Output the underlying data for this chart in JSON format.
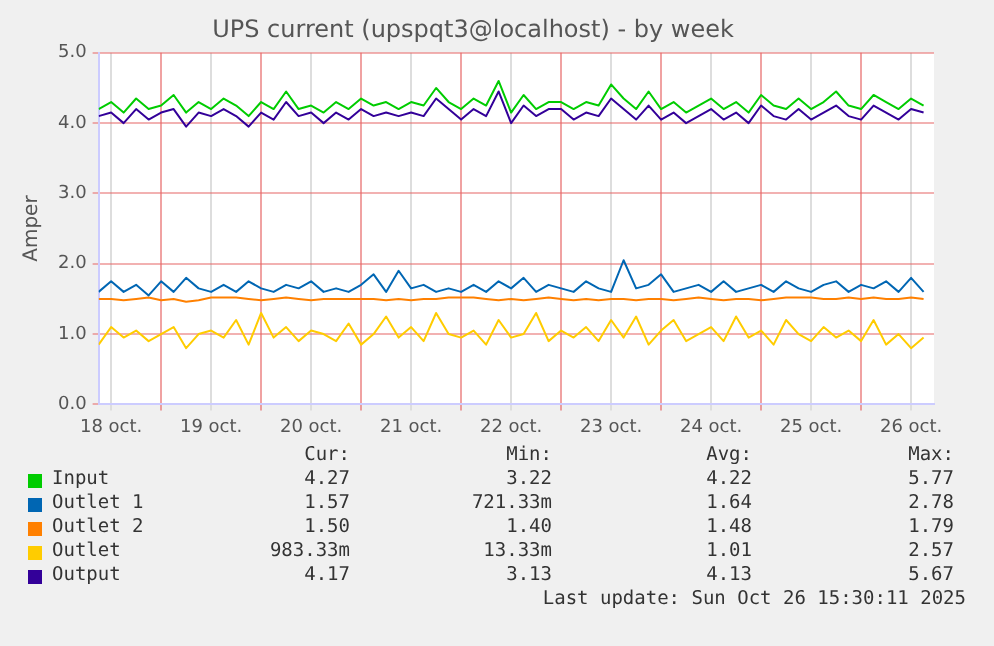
{
  "chart_data": {
    "type": "line",
    "title": "UPS current (upspqt3@localhost) - by week",
    "ylabel": "Amper",
    "x": [
      "2025-10-18T09:00",
      "2025-10-18T12:00",
      "2025-10-18T15:00",
      "2025-10-18T18:00",
      "2025-10-18T21:00",
      "2025-10-19T00:00",
      "2025-10-19T03:00",
      "2025-10-19T06:00",
      "2025-10-19T09:00",
      "2025-10-19T12:00",
      "2025-10-19T15:00",
      "2025-10-19T18:00",
      "2025-10-19T21:00",
      "2025-10-20T00:00",
      "2025-10-20T03:00",
      "2025-10-20T06:00",
      "2025-10-20T09:00",
      "2025-10-20T12:00",
      "2025-10-20T15:00",
      "2025-10-20T18:00",
      "2025-10-20T21:00",
      "2025-10-21T00:00",
      "2025-10-21T03:00",
      "2025-10-21T06:00",
      "2025-10-21T09:00",
      "2025-10-21T12:00",
      "2025-10-21T15:00",
      "2025-10-21T18:00",
      "2025-10-21T21:00",
      "2025-10-22T00:00",
      "2025-10-22T03:00",
      "2025-10-22T06:00",
      "2025-10-22T09:00",
      "2025-10-22T12:00",
      "2025-10-22T15:00",
      "2025-10-22T18:00",
      "2025-10-22T21:00",
      "2025-10-23T00:00",
      "2025-10-23T03:00",
      "2025-10-23T06:00",
      "2025-10-23T09:00",
      "2025-10-23T12:00",
      "2025-10-23T15:00",
      "2025-10-23T18:00",
      "2025-10-23T21:00",
      "2025-10-24T00:00",
      "2025-10-24T03:00",
      "2025-10-24T06:00",
      "2025-10-24T09:00",
      "2025-10-24T12:00",
      "2025-10-24T15:00",
      "2025-10-24T18:00",
      "2025-10-24T21:00",
      "2025-10-25T00:00",
      "2025-10-25T03:00",
      "2025-10-25T06:00",
      "2025-10-25T09:00",
      "2025-10-25T12:00",
      "2025-10-25T15:00",
      "2025-10-25T18:00",
      "2025-10-25T21:00",
      "2025-10-26T00:00",
      "2025-10-26T03:00",
      "2025-10-26T06:00",
      "2025-10-26T09:00",
      "2025-10-26T12:00",
      "2025-10-26T15:00"
    ],
    "series": [
      {
        "name": "Input",
        "color": "#00cc00",
        "values": [
          4.2,
          4.3,
          4.15,
          4.35,
          4.2,
          4.25,
          4.4,
          4.15,
          4.3,
          4.2,
          4.35,
          4.25,
          4.1,
          4.3,
          4.2,
          4.45,
          4.2,
          4.25,
          4.15,
          4.3,
          4.2,
          4.35,
          4.25,
          4.3,
          4.2,
          4.3,
          4.25,
          4.5,
          4.3,
          4.2,
          4.35,
          4.25,
          4.6,
          4.15,
          4.4,
          4.2,
          4.3,
          4.3,
          4.2,
          4.3,
          4.25,
          4.55,
          4.35,
          4.2,
          4.45,
          4.2,
          4.3,
          4.15,
          4.25,
          4.35,
          4.2,
          4.3,
          4.15,
          4.4,
          4.25,
          4.2,
          4.35,
          4.2,
          4.3,
          4.45,
          4.25,
          4.2,
          4.4,
          4.3,
          4.2,
          4.35,
          4.25
        ]
      },
      {
        "name": "Outlet 1",
        "color": "#0066b3",
        "values": [
          1.6,
          1.75,
          1.6,
          1.7,
          1.55,
          1.75,
          1.6,
          1.8,
          1.65,
          1.6,
          1.7,
          1.6,
          1.75,
          1.65,
          1.6,
          1.7,
          1.65,
          1.75,
          1.6,
          1.65,
          1.6,
          1.7,
          1.85,
          1.6,
          1.9,
          1.65,
          1.7,
          1.6,
          1.65,
          1.6,
          1.7,
          1.6,
          1.75,
          1.65,
          1.8,
          1.6,
          1.7,
          1.65,
          1.6,
          1.75,
          1.65,
          1.6,
          2.05,
          1.65,
          1.7,
          1.85,
          1.6,
          1.65,
          1.7,
          1.6,
          1.75,
          1.6,
          1.65,
          1.7,
          1.6,
          1.75,
          1.65,
          1.6,
          1.7,
          1.75,
          1.6,
          1.7,
          1.65,
          1.75,
          1.6,
          1.8,
          1.6
        ]
      },
      {
        "name": "Outlet 2",
        "color": "#ff8000",
        "values": [
          1.5,
          1.5,
          1.48,
          1.5,
          1.52,
          1.48,
          1.5,
          1.46,
          1.48,
          1.52,
          1.52,
          1.52,
          1.5,
          1.48,
          1.5,
          1.52,
          1.5,
          1.48,
          1.5,
          1.5,
          1.5,
          1.5,
          1.5,
          1.48,
          1.5,
          1.48,
          1.5,
          1.5,
          1.52,
          1.52,
          1.52,
          1.5,
          1.48,
          1.5,
          1.48,
          1.5,
          1.52,
          1.5,
          1.48,
          1.5,
          1.48,
          1.5,
          1.5,
          1.48,
          1.5,
          1.5,
          1.48,
          1.5,
          1.52,
          1.5,
          1.48,
          1.5,
          1.5,
          1.48,
          1.5,
          1.52,
          1.52,
          1.52,
          1.5,
          1.5,
          1.52,
          1.5,
          1.52,
          1.5,
          1.5,
          1.52,
          1.5
        ]
      },
      {
        "name": "Outlet",
        "color": "#ffcc00",
        "values": [
          0.85,
          1.1,
          0.95,
          1.05,
          0.9,
          1.0,
          1.1,
          0.8,
          1.0,
          1.05,
          0.95,
          1.2,
          0.85,
          1.3,
          0.95,
          1.1,
          0.9,
          1.05,
          1.0,
          0.9,
          1.15,
          0.85,
          1.0,
          1.25,
          0.95,
          1.1,
          0.9,
          1.3,
          1.0,
          0.95,
          1.05,
          0.85,
          1.2,
          0.95,
          1.0,
          1.3,
          0.9,
          1.05,
          0.95,
          1.1,
          0.9,
          1.2,
          0.95,
          1.25,
          0.85,
          1.05,
          1.2,
          0.9,
          1.0,
          1.1,
          0.9,
          1.25,
          0.95,
          1.05,
          0.85,
          1.2,
          1.0,
          0.9,
          1.1,
          0.95,
          1.05,
          0.9,
          1.2,
          0.85,
          1.0,
          0.8,
          0.95
        ]
      },
      {
        "name": "Output",
        "color": "#330099",
        "values": [
          4.1,
          4.15,
          4.0,
          4.2,
          4.05,
          4.15,
          4.2,
          3.95,
          4.15,
          4.1,
          4.2,
          4.1,
          3.95,
          4.15,
          4.05,
          4.3,
          4.1,
          4.15,
          4.0,
          4.15,
          4.05,
          4.2,
          4.1,
          4.15,
          4.1,
          4.15,
          4.1,
          4.35,
          4.2,
          4.05,
          4.2,
          4.1,
          4.45,
          4.0,
          4.25,
          4.1,
          4.2,
          4.2,
          4.05,
          4.15,
          4.1,
          4.35,
          4.2,
          4.05,
          4.25,
          4.05,
          4.15,
          4.0,
          4.1,
          4.2,
          4.05,
          4.15,
          4.0,
          4.25,
          4.1,
          4.05,
          4.2,
          4.05,
          4.15,
          4.25,
          4.1,
          4.05,
          4.25,
          4.15,
          4.05,
          4.2,
          4.15
        ]
      }
    ],
    "xlim": [
      "2025-10-18T09:00",
      "2025-10-26T17:30"
    ],
    "xticks": [
      {
        "value": "2025-10-18T12:00",
        "label": "18 oct."
      },
      {
        "value": "2025-10-19T00:00",
        "label": null
      },
      {
        "value": "2025-10-19T12:00",
        "label": "19 oct."
      },
      {
        "value": "2025-10-20T00:00",
        "label": null
      },
      {
        "value": "2025-10-20T12:00",
        "label": "20 oct."
      },
      {
        "value": "2025-10-21T00:00",
        "label": null
      },
      {
        "value": "2025-10-21T12:00",
        "label": "21 oct."
      },
      {
        "value": "2025-10-22T00:00",
        "label": null
      },
      {
        "value": "2025-10-22T12:00",
        "label": "22 oct."
      },
      {
        "value": "2025-10-23T00:00",
        "label": null
      },
      {
        "value": "2025-10-23T12:00",
        "label": "23 oct."
      },
      {
        "value": "2025-10-24T00:00",
        "label": null
      },
      {
        "value": "2025-10-24T12:00",
        "label": "24 oct."
      },
      {
        "value": "2025-10-25T00:00",
        "label": null
      },
      {
        "value": "2025-10-25T12:00",
        "label": "25 oct."
      },
      {
        "value": "2025-10-26T00:00",
        "label": null
      },
      {
        "value": "2025-10-26T12:00",
        "label": "26 oct."
      }
    ],
    "ylim": [
      0,
      5
    ],
    "yticks": [
      {
        "value": 0,
        "label": "0.0"
      },
      {
        "value": 1,
        "label": "1.0"
      },
      {
        "value": 2,
        "label": "2.0"
      },
      {
        "value": 3,
        "label": "3.0"
      },
      {
        "value": 4,
        "label": "4.0"
      },
      {
        "value": 5,
        "label": "5.0"
      }
    ],
    "grid": true,
    "legend": "bottom",
    "marker": "none",
    "annotations": [
      "Cur:",
      "Min:",
      "Avg:",
      "Max:",
      "4.27",
      "3.22",
      "4.22",
      "5.77",
      "1.57",
      "721.33m",
      "1.64",
      "2.78",
      "1.50",
      "1.40",
      "1.48",
      "1.79",
      "983.33m",
      "13.33m",
      "1.01",
      "2.57",
      "4.17",
      "3.13",
      "4.13",
      "5.67",
      "Last update: Sun Oct 26 15:30:11 2025"
    ]
  }
}
